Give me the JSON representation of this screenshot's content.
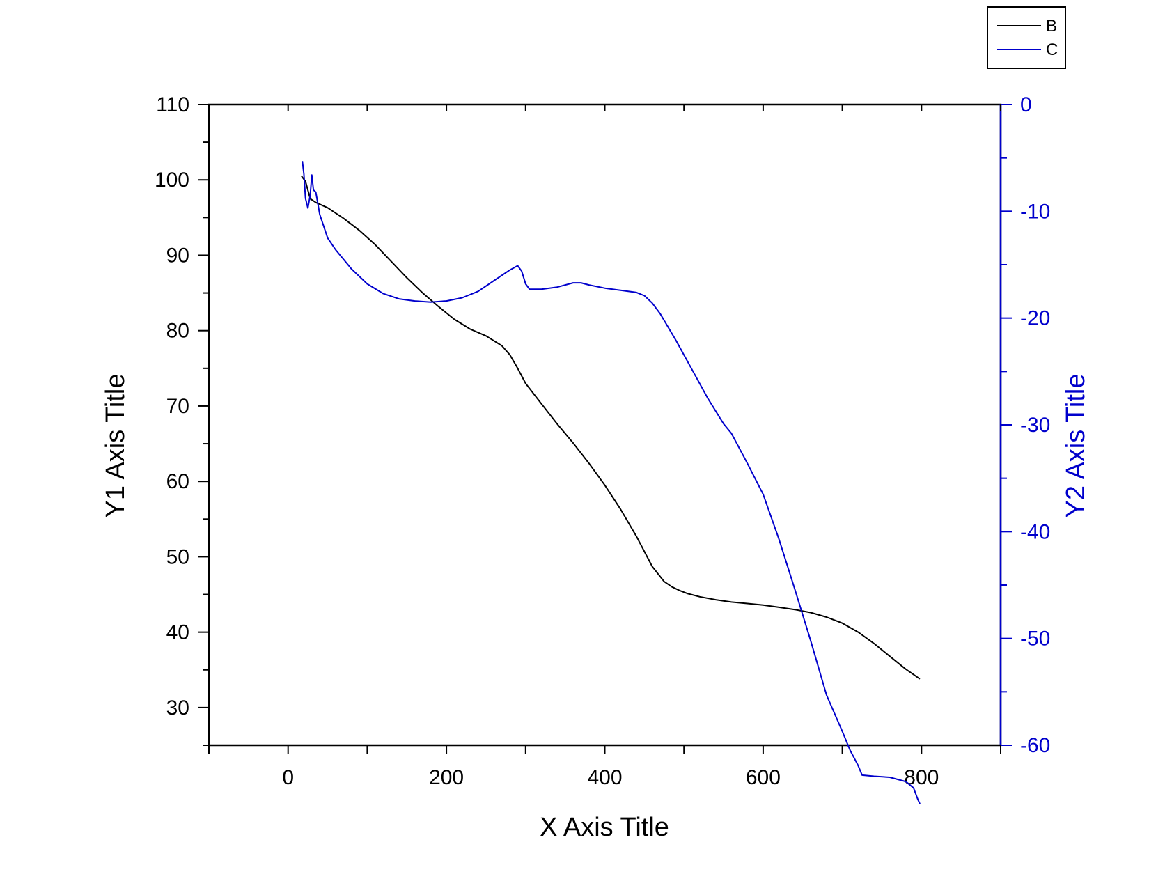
{
  "chart_data": {
    "type": "line",
    "xlabel": "X Axis Title",
    "ylabel": "Y1 Axis Title",
    "y2label": "Y2 Axis Title",
    "xlim": [
      -100,
      900
    ],
    "ylim": [
      25,
      110
    ],
    "y2lim": [
      -60,
      0
    ],
    "x_ticks": [
      0,
      200,
      400,
      600,
      800
    ],
    "y_ticks": [
      30,
      40,
      50,
      60,
      70,
      80,
      90,
      100,
      110
    ],
    "y2_ticks": [
      -60,
      -50,
      -40,
      -30,
      -20,
      -10,
      0
    ],
    "grid": false,
    "legend_position": "top-right",
    "series": [
      {
        "name": "B",
        "axis": "y1",
        "color": "#000000",
        "x": [
          17,
          22,
          28,
          35,
          50,
          70,
          90,
          110,
          130,
          150,
          170,
          190,
          210,
          230,
          250,
          270,
          280,
          290,
          300,
          320,
          340,
          360,
          380,
          400,
          420,
          440,
          460,
          475,
          485,
          495,
          505,
          520,
          540,
          560,
          580,
          600,
          620,
          640,
          660,
          680,
          700,
          720,
          740,
          760,
          780,
          798
        ],
        "y": [
          100.5,
          99.8,
          97.5,
          97,
          96.3,
          94.9,
          93.3,
          91.4,
          89.2,
          87,
          85,
          83.2,
          81.5,
          80.2,
          79.3,
          78,
          76.8,
          75,
          73,
          70.3,
          67.6,
          65.1,
          62.4,
          59.5,
          56.3,
          52.7,
          48.7,
          46.7,
          46,
          45.5,
          45.1,
          44.7,
          44.3,
          44,
          43.8,
          43.6,
          43.3,
          43,
          42.6,
          42,
          41.2,
          40,
          38.5,
          36.8,
          35.1,
          33.8
        ]
      },
      {
        "name": "C",
        "axis": "y2",
        "color": "#0000cc",
        "x": [
          18,
          20,
          22,
          25,
          28,
          30,
          32,
          35,
          40,
          50,
          60,
          80,
          100,
          120,
          140,
          160,
          180,
          200,
          220,
          240,
          260,
          280,
          290,
          295,
          300,
          305,
          320,
          340,
          360,
          370,
          380,
          400,
          420,
          440,
          450,
          460,
          470,
          490,
          510,
          530,
          550,
          560,
          580,
          600,
          620,
          640,
          660,
          680,
          700,
          710,
          720,
          725,
          740,
          760,
          780,
          790,
          795,
          798
        ],
        "y": [
          -5.3,
          -6.5,
          -8.8,
          -9.7,
          -8.5,
          -6.6,
          -8,
          -8.2,
          -10.3,
          -12.5,
          -13.6,
          -15.4,
          -16.8,
          -17.7,
          -18.2,
          -18.4,
          -18.5,
          -18.4,
          -18.1,
          -17.5,
          -16.5,
          -15.5,
          -15.1,
          -15.6,
          -16.8,
          -17.3,
          -17.3,
          -17.1,
          -16.7,
          -16.7,
          -16.9,
          -17.2,
          -17.4,
          -17.6,
          -17.9,
          -18.6,
          -19.6,
          -22.1,
          -24.8,
          -27.5,
          -29.9,
          -30.8,
          -33.6,
          -36.5,
          -40.7,
          -45.4,
          -50.2,
          -55.3,
          -58.7,
          -60.5,
          -61.9,
          -62.8,
          -62.9,
          -63,
          -63.4,
          -64,
          -65,
          -65.5
        ]
      }
    ]
  }
}
